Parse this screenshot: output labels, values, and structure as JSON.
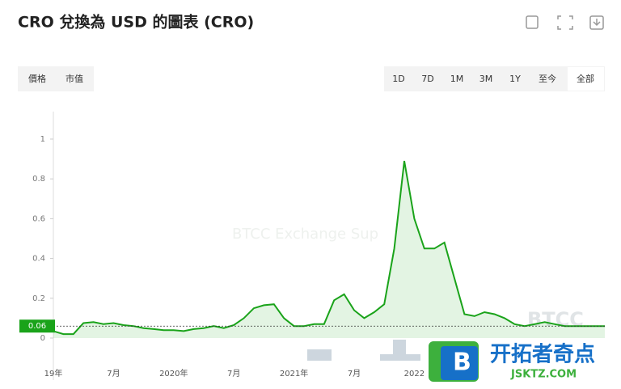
{
  "header": {
    "title": "CRO 兌換為 USD 的圖表 (CRO)"
  },
  "metric_tabs": [
    "價格",
    "市值"
  ],
  "range_buttons": [
    "1D",
    "7D",
    "1M",
    "3M",
    "1Y",
    "至今",
    "全部"
  ],
  "watermark": "BTCC",
  "overlay": {
    "logo_letter": "B",
    "name": "开拓者奇点",
    "site": "JSKTZ.COM"
  },
  "chart_data": {
    "type": "line",
    "categories": [
      "19年",
      null,
      null,
      null,
      null,
      null,
      "7月",
      null,
      null,
      null,
      null,
      null,
      "2020年",
      null,
      null,
      null,
      null,
      null,
      "7月",
      null,
      null,
      null,
      null,
      null,
      "2021年",
      null,
      null,
      null,
      null,
      null,
      "7月",
      null,
      null,
      null,
      null,
      null,
      "2022",
      null,
      null,
      null,
      null,
      null,
      null,
      null,
      null,
      null,
      null,
      null,
      null,
      null,
      null,
      null,
      null,
      null,
      null,
      null
    ],
    "series": [
      {
        "name": "CRO",
        "color": "#1aa31a",
        "values": [
          0.035,
          0.02,
          0.02,
          0.075,
          0.08,
          0.07,
          0.075,
          0.065,
          0.06,
          0.05,
          0.045,
          0.04,
          0.04,
          0.035,
          0.045,
          0.05,
          0.06,
          0.05,
          0.065,
          0.1,
          0.15,
          0.165,
          0.17,
          0.1,
          0.06,
          0.06,
          0.07,
          0.07,
          0.19,
          0.22,
          0.14,
          0.1,
          0.13,
          0.17,
          0.45,
          0.89,
          0.6,
          0.45,
          0.45,
          0.48,
          0.3,
          0.12,
          0.11,
          0.13,
          0.12,
          0.1,
          0.07,
          0.06,
          0.07,
          0.08,
          0.07,
          0.06,
          0.06,
          0.06,
          0.06,
          0.06
        ]
      }
    ],
    "current_price": 0.06,
    "ylim": [
      0,
      1.13
    ],
    "yticks": [
      0,
      0.2,
      0.4,
      0.6,
      0.8,
      1
    ]
  }
}
